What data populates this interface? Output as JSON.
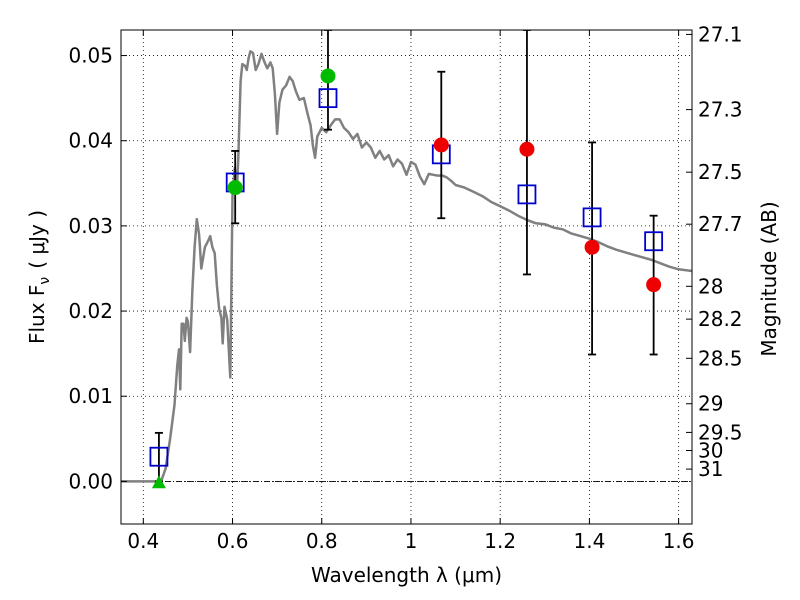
{
  "chart_data": {
    "type": "scatter",
    "xlabel": "Wavelength  λ (μm)",
    "ylabel": "Flux  F",
    "ylabel_sub": "ν",
    "ylabel_unit": "( μJy )",
    "y2label": "Magnitude (AB)",
    "xlim": [
      0.35,
      1.63
    ],
    "ylim": [
      -0.005,
      0.053
    ],
    "grid": true,
    "xticks": [
      0.4,
      0.6,
      0.8,
      1.0,
      1.2,
      1.4,
      1.6
    ],
    "xtick_labels": [
      "0.4",
      "0.6",
      "0.8",
      "1",
      "1.2",
      "1.4",
      "1.6"
    ],
    "yticks": [
      0.0,
      0.01,
      0.02,
      0.03,
      0.04,
      0.05
    ],
    "ytick_labels": [
      "0.00",
      "0.01",
      "0.02",
      "0.03",
      "0.04",
      "0.05"
    ],
    "mag_ticks": [
      "27.1",
      "27.3",
      "27.5",
      "27.7",
      "28",
      "28.2",
      "28.5",
      "29",
      "29.5",
      "30",
      "31"
    ],
    "colors": {
      "model": "#808080",
      "blue_box": "#0000cc",
      "green": "#00bb00",
      "red": "#ee0000",
      "errorbar": "#000000"
    },
    "series": [
      {
        "marker": "square-open",
        "color": "#0000cc",
        "points": [
          {
            "x": 0.435,
            "y": 0.0029
          },
          {
            "x": 0.606,
            "y": 0.0351
          },
          {
            "x": 0.814,
            "y": 0.045
          },
          {
            "x": 1.068,
            "y": 0.0384
          },
          {
            "x": 1.26,
            "y": 0.0337
          },
          {
            "x": 1.406,
            "y": 0.031
          },
          {
            "x": 1.544,
            "y": 0.0282
          }
        ]
      },
      {
        "marker": "circle",
        "color": "#00bb00",
        "points": [
          {
            "x": 0.606,
            "y": 0.0345
          },
          {
            "x": 0.814,
            "y": 0.0476
          }
        ]
      },
      {
        "marker": "triangle",
        "color": "#00bb00",
        "points": [
          {
            "x": 0.435,
            "y": -0.0001
          }
        ]
      },
      {
        "marker": "circle",
        "color": "#ee0000",
        "points": [
          {
            "x": 1.068,
            "y": 0.0395
          },
          {
            "x": 1.26,
            "y": 0.039
          },
          {
            "x": 1.406,
            "y": 0.0275
          },
          {
            "x": 1.544,
            "y": 0.0231
          }
        ]
      }
    ],
    "errorbars": [
      {
        "x": 0.435,
        "low": 0.0,
        "high": 0.0057
      },
      {
        "x": 0.606,
        "low": 0.0303,
        "high": 0.0388
      },
      {
        "x": 0.814,
        "low": 0.0413,
        "high": 0.053
      },
      {
        "x": 1.068,
        "low": 0.0309,
        "high": 0.0481
      },
      {
        "x": 1.26,
        "low": 0.0243,
        "high": 0.053
      },
      {
        "x": 1.406,
        "low": 0.0149,
        "high": 0.0398
      },
      {
        "x": 1.544,
        "low": 0.0149,
        "high": 0.0312
      }
    ],
    "model_curve": [
      [
        0.35,
        0.0
      ],
      [
        0.44,
        0.0
      ],
      [
        0.45,
        0.0015
      ],
      [
        0.46,
        0.005
      ],
      [
        0.47,
        0.009
      ],
      [
        0.476,
        0.0135
      ],
      [
        0.48,
        0.0155
      ],
      [
        0.483,
        0.0108
      ],
      [
        0.486,
        0.0185
      ],
      [
        0.49,
        0.0185
      ],
      [
        0.493,
        0.0165
      ],
      [
        0.497,
        0.0192
      ],
      [
        0.5,
        0.0188
      ],
      [
        0.505,
        0.0152
      ],
      [
        0.51,
        0.0225
      ],
      [
        0.515,
        0.0275
      ],
      [
        0.52,
        0.0308
      ],
      [
        0.525,
        0.029
      ],
      [
        0.53,
        0.025
      ],
      [
        0.538,
        0.0275
      ],
      [
        0.545,
        0.0282
      ],
      [
        0.55,
        0.0288
      ],
      [
        0.555,
        0.0275
      ],
      [
        0.56,
        0.0268
      ],
      [
        0.565,
        0.023
      ],
      [
        0.57,
        0.0203
      ],
      [
        0.575,
        0.0192
      ],
      [
        0.578,
        0.0162
      ],
      [
        0.582,
        0.0205
      ],
      [
        0.588,
        0.019
      ],
      [
        0.595,
        0.0122
      ],
      [
        0.6,
        0.0335
      ],
      [
        0.605,
        0.0368
      ],
      [
        0.61,
        0.0345
      ],
      [
        0.613,
        0.038
      ],
      [
        0.618,
        0.047
      ],
      [
        0.622,
        0.049
      ],
      [
        0.628,
        0.0488
      ],
      [
        0.632,
        0.0483
      ],
      [
        0.636,
        0.0497
      ],
      [
        0.64,
        0.0505
      ],
      [
        0.646,
        0.0503
      ],
      [
        0.652,
        0.0483
      ],
      [
        0.658,
        0.049
      ],
      [
        0.665,
        0.0502
      ],
      [
        0.672,
        0.0492
      ],
      [
        0.678,
        0.0485
      ],
      [
        0.685,
        0.0492
      ],
      [
        0.69,
        0.0485
      ],
      [
        0.695,
        0.0455
      ],
      [
        0.7,
        0.0408
      ],
      [
        0.705,
        0.0445
      ],
      [
        0.712,
        0.046
      ],
      [
        0.72,
        0.0465
      ],
      [
        0.728,
        0.0475
      ],
      [
        0.735,
        0.047
      ],
      [
        0.742,
        0.0458
      ],
      [
        0.75,
        0.0448
      ],
      [
        0.76,
        0.045
      ],
      [
        0.768,
        0.0432
      ],
      [
        0.775,
        0.0418
      ],
      [
        0.78,
        0.0395
      ],
      [
        0.785,
        0.038
      ],
      [
        0.79,
        0.0405
      ],
      [
        0.8,
        0.0415
      ],
      [
        0.81,
        0.041
      ],
      [
        0.82,
        0.0418
      ],
      [
        0.83,
        0.0425
      ],
      [
        0.84,
        0.0425
      ],
      [
        0.85,
        0.0415
      ],
      [
        0.86,
        0.041
      ],
      [
        0.87,
        0.0402
      ],
      [
        0.88,
        0.0408
      ],
      [
        0.89,
        0.0392
      ],
      [
        0.9,
        0.0398
      ],
      [
        0.91,
        0.0392
      ],
      [
        0.92,
        0.038
      ],
      [
        0.93,
        0.0388
      ],
      [
        0.94,
        0.0378
      ],
      [
        0.95,
        0.0383
      ],
      [
        0.96,
        0.037
      ],
      [
        0.97,
        0.0378
      ],
      [
        0.98,
        0.0373
      ],
      [
        0.99,
        0.036
      ],
      [
        1.0,
        0.0375
      ],
      [
        1.01,
        0.0372
      ],
      [
        1.02,
        0.0358
      ],
      [
        1.03,
        0.0349
      ],
      [
        1.04,
        0.0361
      ],
      [
        1.05,
        0.036
      ],
      [
        1.06,
        0.0359
      ],
      [
        1.07,
        0.0359
      ],
      [
        1.08,
        0.0357
      ],
      [
        1.09,
        0.0353
      ],
      [
        1.1,
        0.0348
      ],
      [
        1.12,
        0.0345
      ],
      [
        1.14,
        0.034
      ],
      [
        1.16,
        0.0335
      ],
      [
        1.18,
        0.0328
      ],
      [
        1.2,
        0.0323
      ],
      [
        1.22,
        0.0318
      ],
      [
        1.24,
        0.0312
      ],
      [
        1.26,
        0.0307
      ],
      [
        1.28,
        0.0303
      ],
      [
        1.3,
        0.0302
      ],
      [
        1.32,
        0.0298
      ],
      [
        1.34,
        0.0296
      ],
      [
        1.36,
        0.0291
      ],
      [
        1.38,
        0.0288
      ],
      [
        1.4,
        0.0285
      ],
      [
        1.42,
        0.0281
      ],
      [
        1.44,
        0.0276
      ],
      [
        1.46,
        0.0272
      ],
      [
        1.48,
        0.0269
      ],
      [
        1.5,
        0.0266
      ],
      [
        1.52,
        0.0263
      ],
      [
        1.54,
        0.026
      ],
      [
        1.56,
        0.0256
      ],
      [
        1.58,
        0.0252
      ],
      [
        1.6,
        0.0249
      ],
      [
        1.63,
        0.0247
      ]
    ]
  }
}
